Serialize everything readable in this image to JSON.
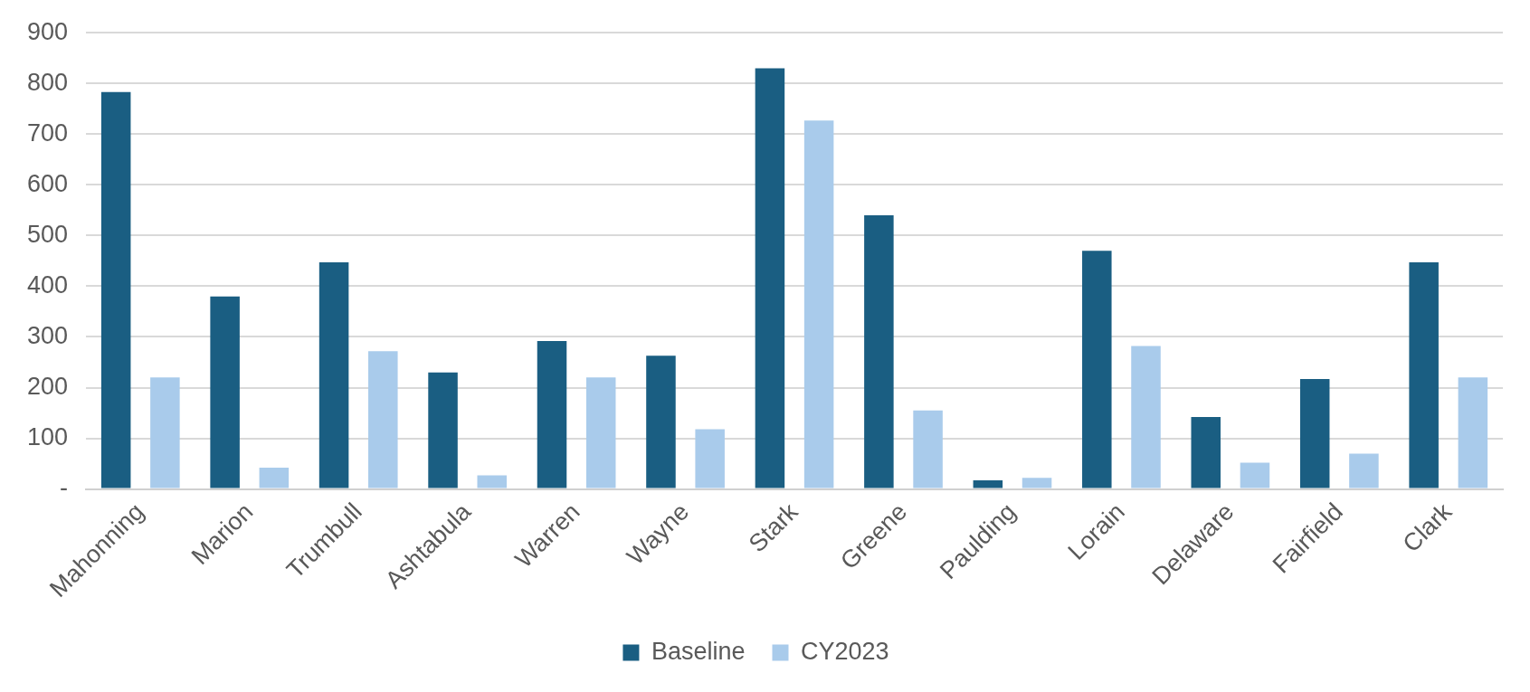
{
  "chart_data": {
    "type": "bar",
    "categories": [
      "Mahonning",
      "Marion",
      "Trumbull",
      "Ashtabula",
      "Warren",
      "Wayne",
      "Stark",
      "Greene",
      "Paulding",
      "Lorain",
      "Delaware",
      "Fairfield",
      "Clark"
    ],
    "series": [
      {
        "name": "Baseline",
        "color": "#1a5e82",
        "values": [
          783,
          380,
          447,
          230,
          292,
          263,
          830,
          540,
          17,
          470,
          142,
          217,
          447
        ]
      },
      {
        "name": "CY2023",
        "color": "#a9cbeb",
        "values": [
          220,
          42,
          272,
          27,
          220,
          118,
          727,
          155,
          22,
          282,
          52,
          70,
          220
        ]
      }
    ],
    "ylim": [
      0,
      900
    ],
    "yticks": [
      {
        "value": 0,
        "label": "-"
      },
      100,
      200,
      300,
      400,
      500,
      600,
      700,
      800,
      900
    ],
    "grid": "y",
    "legend": "bottom"
  }
}
